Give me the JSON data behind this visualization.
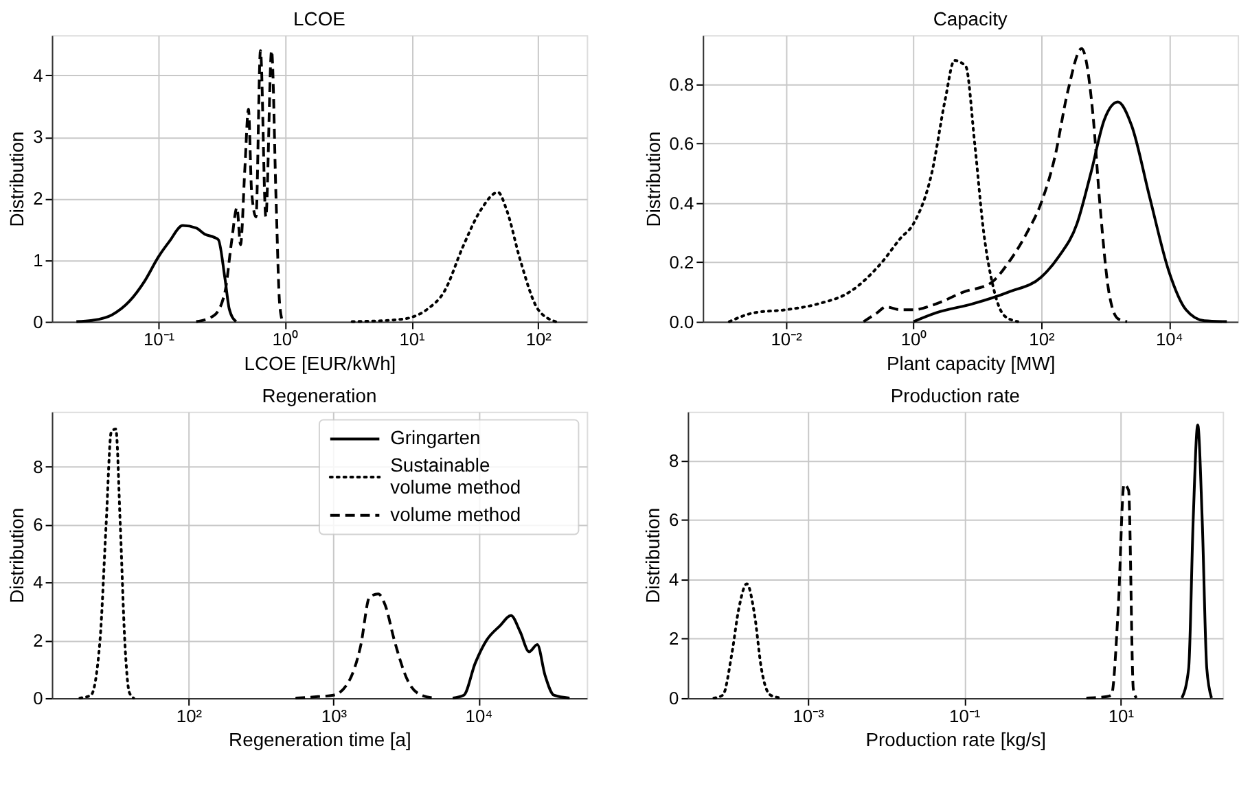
{
  "chart_data": [
    {
      "type": "line",
      "title": "LCOE",
      "xlabel": "LCOE [EUR/kWh]",
      "ylabel": "Distribution",
      "log": "x",
      "grid": true,
      "xlim": [
        0.0144,
        243
      ],
      "xticks": [
        {
          "value": 0.1,
          "label": "10⁻¹"
        },
        {
          "value": 1,
          "label": "10⁰"
        },
        {
          "value": 10,
          "label": "10¹"
        },
        {
          "value": 100,
          "label": "10²"
        }
      ],
      "ylim": [
        0,
        4.65
      ],
      "yticks": [
        0,
        1,
        2,
        3,
        4
      ],
      "series": [
        {
          "color": "#000000",
          "line_style": "solid",
          "x": [
            0.0225,
            0.03,
            0.043,
            0.059,
            0.078,
            0.1,
            0.122,
            0.156,
            0.199,
            0.233,
            0.275,
            0.298,
            0.336,
            0.364,
            0.411
          ],
          "values": [
            0,
            0.02,
            0.11,
            0.33,
            0.66,
            1.05,
            1.3,
            1.56,
            1.52,
            1.42,
            1.37,
            1.33,
            0.7,
            0.2,
            0
          ]
        },
        {
          "color": "#000000",
          "line_style": "dotted",
          "x": [
            3.4,
            7.5,
            10,
            13.3,
            18.3,
            25.3,
            35,
            48.3,
            56.8,
            72.4,
            100,
            138
          ],
          "values": [
            0,
            0.03,
            0.07,
            0.2,
            0.5,
            1.2,
            1.8,
            2.1,
            1.8,
            1.0,
            0.2,
            0
          ]
        },
        {
          "color": "#000000",
          "line_style": "dashed",
          "x": [
            0.199,
            0.275,
            0.336,
            0.379,
            0.418,
            0.446,
            0.483,
            0.515,
            0.546,
            0.591,
            0.641,
            0.707,
            0.785,
            0.851,
            0.908,
            0.96
          ],
          "values": [
            0,
            0.1,
            0.48,
            1.3,
            1.85,
            1.25,
            2.5,
            3.45,
            2.1,
            1.7,
            4.4,
            1.7,
            4.4,
            2.0,
            0.3,
            0
          ]
        }
      ]
    },
    {
      "type": "line",
      "title": "Capacity",
      "xlabel": "Plant capacity [MW]",
      "ylabel": "Distribution",
      "log": "x",
      "grid": true,
      "xlim": [
        0.0005,
        120000
      ],
      "xticks": [
        {
          "value": 0.01,
          "label": "10⁻²"
        },
        {
          "value": 1,
          "label": "10⁰"
        },
        {
          "value": 100,
          "label": "10²"
        },
        {
          "value": 10000,
          "label": "10⁴"
        }
      ],
      "ylim": [
        0,
        0.965
      ],
      "yticks": [
        {
          "value": 0,
          "label": "0.0"
        },
        {
          "value": 0.2,
          "label": "0.2"
        },
        {
          "value": 0.4,
          "label": "0.4"
        },
        {
          "value": 0.6,
          "label": "0.6"
        },
        {
          "value": 0.8,
          "label": "0.8"
        }
      ],
      "series": [
        {
          "color": "#000000",
          "line_style": "solid",
          "x": [
            1,
            2.27,
            8.4,
            31,
            100,
            190,
            364,
            600,
            975,
            1590,
            2620,
            5000,
            10000,
            18600,
            36000,
            81000
          ],
          "values": [
            0,
            0.03,
            0.06,
            0.1,
            0.15,
            0.22,
            0.33,
            0.5,
            0.68,
            0.74,
            0.66,
            0.42,
            0.17,
            0.04,
            0.003,
            0
          ]
        },
        {
          "color": "#000000",
          "line_style": "dotted",
          "x": [
            0.0013,
            0.0032,
            0.01,
            0.032,
            0.1,
            0.32,
            0.62,
            1,
            1.93,
            3.15,
            4.37,
            6.6,
            9.1,
            12.6,
            17.6,
            26.5,
            43
          ],
          "values": [
            0,
            0.03,
            0.04,
            0.06,
            0.1,
            0.2,
            0.28,
            0.33,
            0.5,
            0.75,
            0.88,
            0.86,
            0.6,
            0.3,
            0.12,
            0.02,
            0
          ]
        },
        {
          "color": "#000000",
          "line_style": "dashed",
          "x": [
            0.165,
            0.27,
            0.37,
            0.62,
            1,
            2.27,
            6.1,
            16.2,
            31,
            60,
            100,
            162,
            264,
            430,
            646,
            829,
            1150,
            1590,
            2220
          ],
          "values": [
            0,
            0.03,
            0.05,
            0.04,
            0.04,
            0.06,
            0.1,
            0.13,
            0.2,
            0.3,
            0.4,
            0.55,
            0.78,
            0.92,
            0.7,
            0.4,
            0.1,
            0.01,
            0
          ]
        }
      ]
    },
    {
      "type": "line",
      "title": "Regeneration",
      "xlabel": "Regeneration time [a]",
      "ylabel": "Distribution",
      "log": "x",
      "grid": true,
      "legend": "top right",
      "xlim": [
        11.4,
        56000
      ],
      "xticks": [
        {
          "value": 100,
          "label": "10²"
        },
        {
          "value": 1000,
          "label": "10³"
        },
        {
          "value": 10000,
          "label": "10⁴"
        }
      ],
      "ylim": [
        0,
        9.9
      ],
      "yticks": [
        0,
        2,
        4,
        6,
        8
      ],
      "series": [
        {
          "name": "Gringarten",
          "color": "#000000",
          "line_style": "solid",
          "x": [
            6650,
            7940,
            9500,
            11400,
            14100,
            16800,
            19400,
            22400,
            25500,
            28800,
            33200,
            42600
          ],
          "values": [
            0,
            0.1,
            1.2,
            2.0,
            2.5,
            2.85,
            2.3,
            1.6,
            1.85,
            0.8,
            0.1,
            0
          ]
        },
        {
          "name": "Sustainable volume method",
          "color": "#000000",
          "line_style": "dotted",
          "x": [
            17.8,
            21.2,
            24.5,
            27,
            29.3,
            31.5,
            33.8,
            36.3,
            39,
            41.8
          ],
          "values": [
            0,
            0.1,
            2,
            6,
            9.2,
            9.3,
            6,
            2,
            0.2,
            0
          ]
        },
        {
          "name": "volume method",
          "color": "#000000",
          "line_style": "dashed",
          "x": [
            547,
            782,
            1000,
            1285,
            1540,
            1778,
            2040,
            2280,
            2630,
            3260,
            4040,
            5000
          ],
          "values": [
            0,
            0.05,
            0.1,
            0.6,
            1.8,
            3.5,
            3.6,
            3.2,
            2.0,
            0.6,
            0.1,
            0
          ]
        }
      ]
    },
    {
      "type": "line",
      "title": "Production rate",
      "xlabel": "Production rate [kg/s]",
      "ylabel": "Distribution",
      "log": "x",
      "grid": true,
      "xlim": [
        2.92e-05,
        203
      ],
      "xticks": [
        {
          "value": 0.001,
          "label": "10⁻³"
        },
        {
          "value": 0.1,
          "label": "10⁻¹"
        },
        {
          "value": 10,
          "label": "10¹"
        }
      ],
      "ylim": [
        0,
        9.65
      ],
      "yticks": [
        0,
        2,
        4,
        6,
        8
      ],
      "series": [
        {
          "color": "#000000",
          "line_style": "solid",
          "x": [
            61,
            74.5,
            85.1,
            97.3,
            111,
            127,
            146
          ],
          "values": [
            0,
            1,
            6,
            9.2,
            6,
            1,
            0
          ]
        },
        {
          "color": "#000000",
          "line_style": "dotted",
          "x": [
            6.3e-05,
            8.2e-05,
            0.000107,
            0.000131,
            0.000166,
            0.000209,
            0.000255,
            0.000333,
            0.000467
          ],
          "values": [
            0,
            0.1,
            1.5,
            3.0,
            3.85,
            2.8,
            1.0,
            0.1,
            0
          ]
        },
        {
          "color": "#000000",
          "line_style": "dashed",
          "x": [
            3.66,
            6.7,
            7.66,
            9.35,
            11.1,
            12.7,
            14.6,
            16
          ],
          "values": [
            0,
            0.05,
            0.1,
            3,
            7.2,
            7.0,
            0.3,
            0
          ]
        }
      ]
    }
  ]
}
